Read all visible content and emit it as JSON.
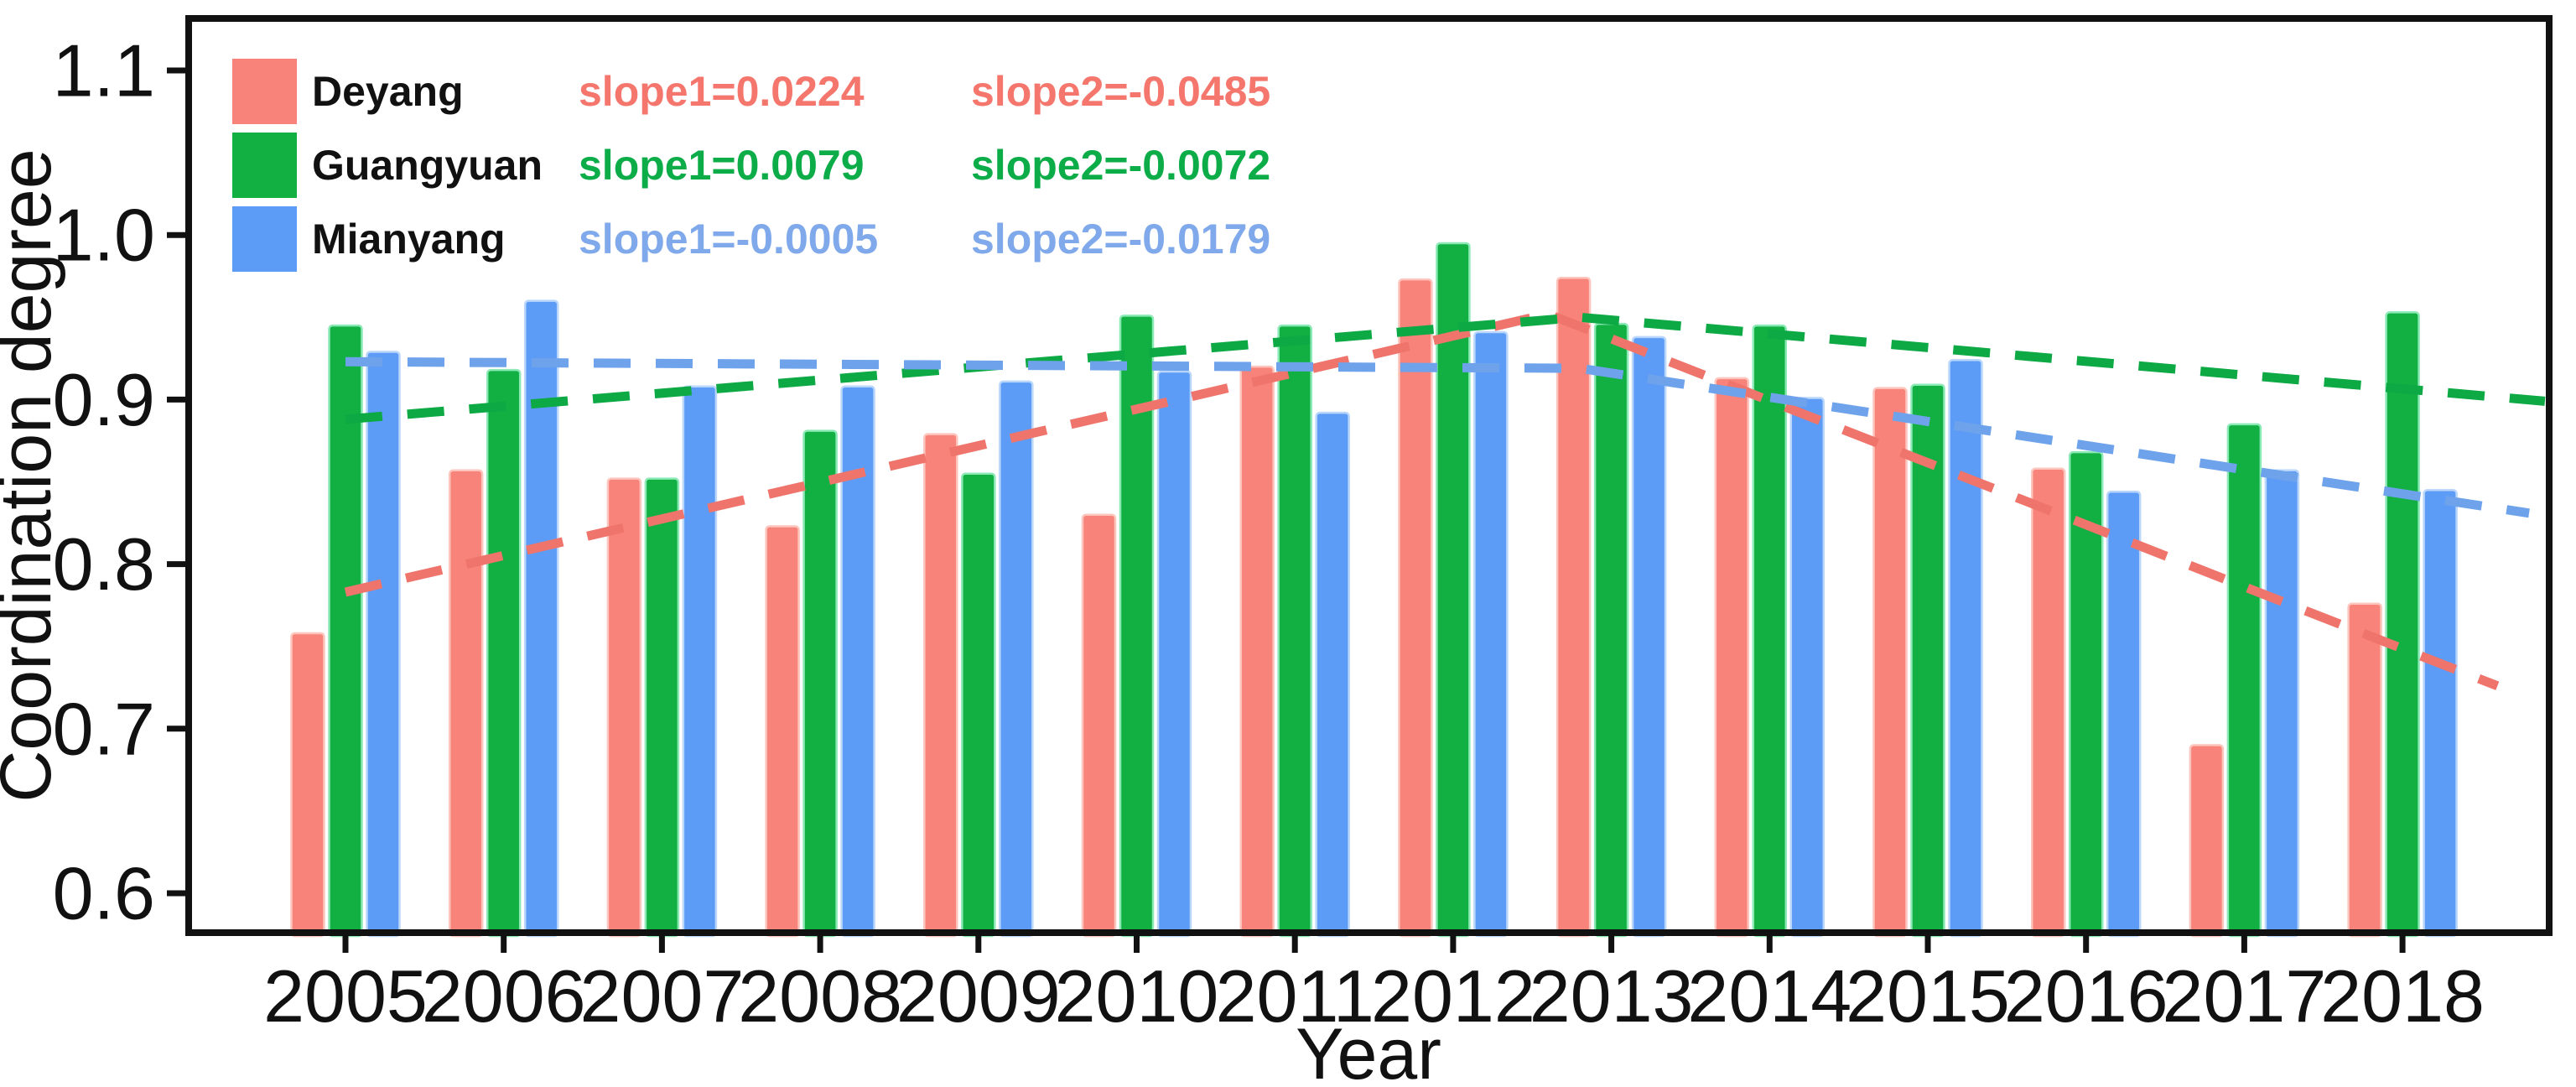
{
  "figure": {
    "background": "#ffffff",
    "axis_color": "#111111"
  },
  "chart_data": {
    "type": "bar",
    "title": "",
    "xlabel": "Year",
    "ylabel": "Coordination degree",
    "categories": [
      "2005",
      "2006",
      "2007",
      "2008",
      "2009",
      "2010",
      "2011",
      "2012",
      "2013",
      "2014",
      "2015",
      "2016",
      "2017",
      "2018"
    ],
    "y_tick_labels": [
      "1.1",
      "1.0",
      "0.9",
      "0.8",
      "0.7",
      "0.6"
    ],
    "y_tick_values": [
      1.1,
      1.0,
      0.9,
      0.8,
      0.7,
      0.6
    ],
    "ylim": [
      0.576,
      1.132
    ],
    "grid": false,
    "legend_position": "top-left",
    "series": [
      {
        "name": "Deyang",
        "bar_color": "#F8837A",
        "bar_edge": "#FCC6BE",
        "line_color": "#EF756C",
        "text_color": "#F4766D",
        "slope1": "slope1=0.0224",
        "slope2": "slope2=-0.0485",
        "values": [
          0.758,
          0.857,
          0.852,
          0.823,
          0.879,
          0.83,
          0.92,
          0.973,
          0.974,
          0.913,
          0.907,
          0.858,
          0.69,
          0.776
        ],
        "trend": [
          [
            2005.0,
            0.783
          ],
          [
            2012.6,
            0.952
          ],
          [
            2018.6,
            0.726
          ]
        ]
      },
      {
        "name": "Guangyuan",
        "bar_color": "#12AF42",
        "bar_edge": "#8BE9B5",
        "line_color": "#0CA944",
        "text_color": "#0CAD49",
        "slope1": "slope1=0.0079",
        "slope2": "slope2=-0.0072",
        "values": [
          0.945,
          0.918,
          0.852,
          0.881,
          0.855,
          0.951,
          0.945,
          0.995,
          0.946,
          0.945,
          0.909,
          0.868,
          0.885,
          0.953
        ],
        "trend": [
          [
            2005.0,
            0.888
          ],
          [
            2012.8,
            0.95
          ],
          [
            2018.9,
            0.899
          ]
        ]
      },
      {
        "name": "Mianyang",
        "bar_color": "#5D9CF6",
        "bar_edge": "#BAD7FB",
        "line_color": "#6EA3EC",
        "text_color": "#7FA9EA",
        "slope1": "slope1=-0.0005",
        "slope2": "slope2=-0.0179",
        "values": [
          0.929,
          0.96,
          0.908,
          0.908,
          0.911,
          0.917,
          0.892,
          0.941,
          0.938,
          0.901,
          0.924,
          0.844,
          0.857,
          0.845
        ],
        "trend": [
          [
            2005.0,
            0.923
          ],
          [
            2012.8,
            0.919
          ],
          [
            2018.8,
            0.831
          ]
        ]
      }
    ]
  }
}
